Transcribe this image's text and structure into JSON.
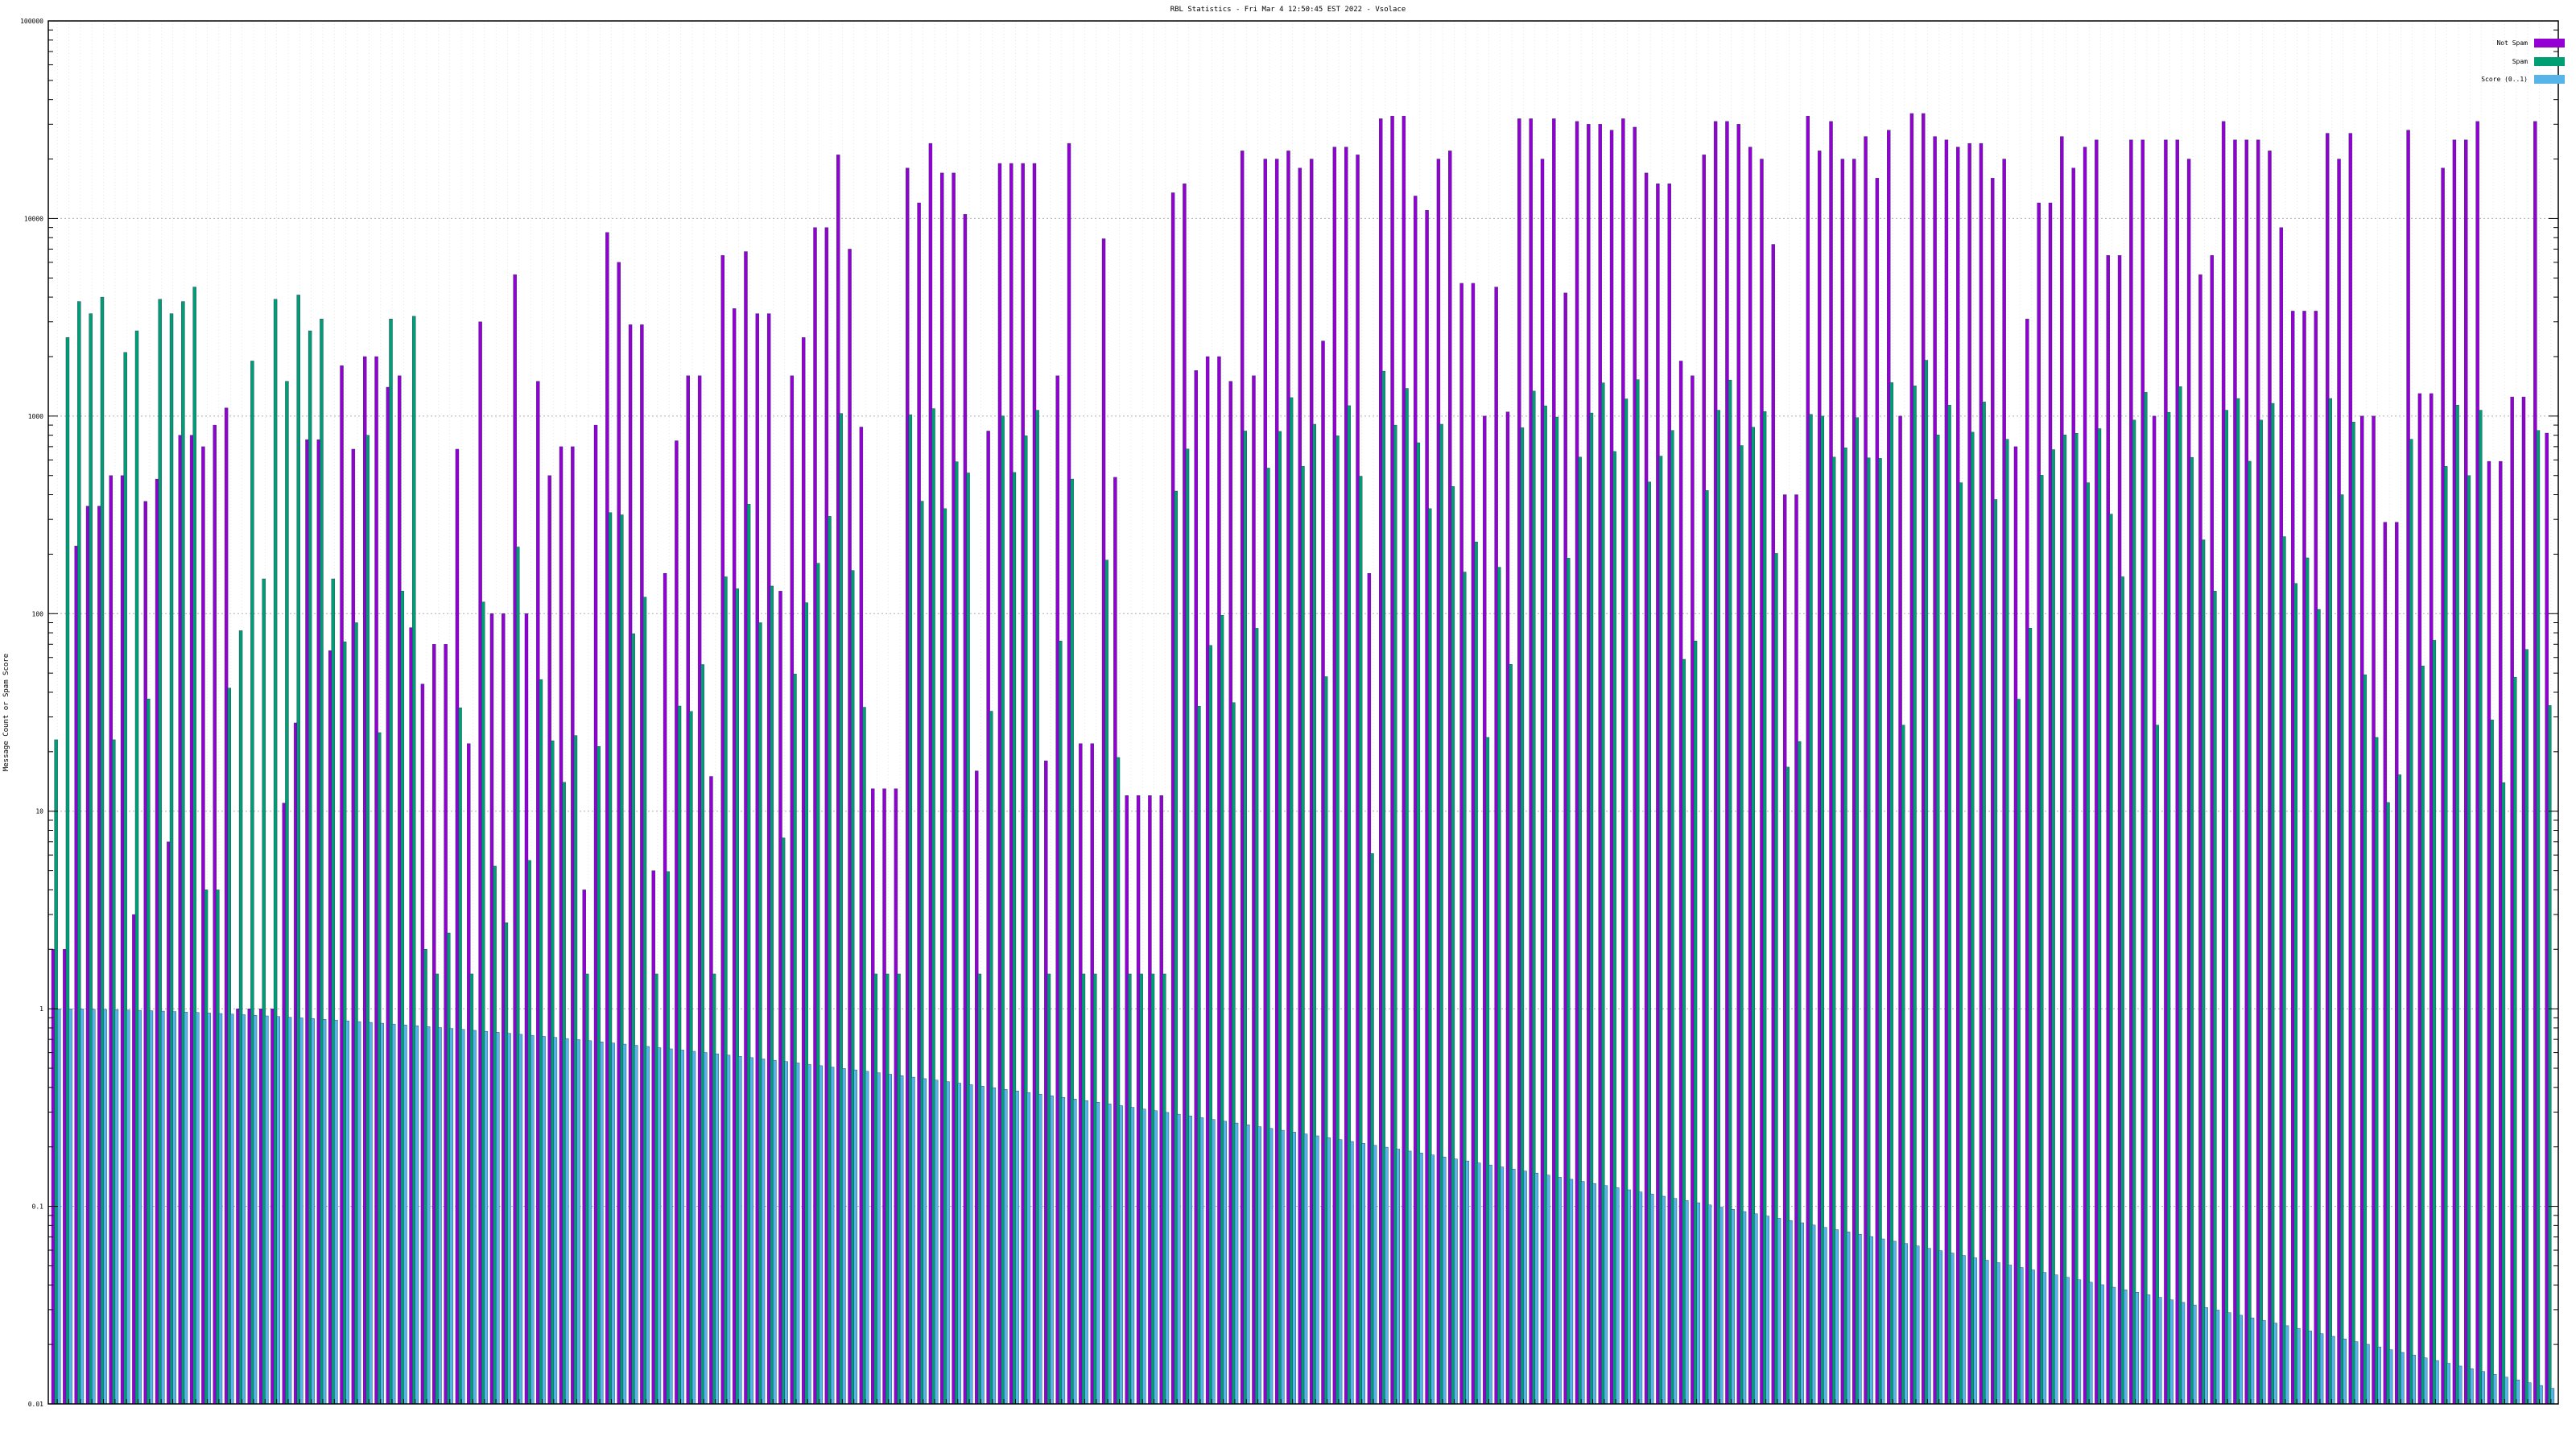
{
  "chart_data": {
    "type": "bar",
    "title": "RBL Statistics - Fri Mar  4 12:50:45 EST 2022 - Vsolace",
    "ylabel": "Message Count or Spam Score",
    "xlabel": "",
    "yscale": "log",
    "ylim": [
      0.01,
      100000
    ],
    "yticks": [
      "0.01",
      "0.1",
      "1",
      "10",
      "100",
      "1000",
      "10000",
      "100000"
    ],
    "grid": true,
    "legend_position": "top-right",
    "series": [
      {
        "name": "Not Spam",
        "color": "#9400d3"
      },
      {
        "name": "Spam",
        "color": "#009e73"
      },
      {
        "name": "Score (0..1)",
        "color": "#56b4e9"
      }
    ],
    "group_count": 217,
    "not_spam_samples": [
      2,
      220,
      350,
      350,
      500,
      3,
      370,
      480,
      7,
      800,
      700,
      900,
      1100,
      1,
      1,
      1,
      11,
      28,
      760,
      65,
      1800,
      680,
      2000,
      1400,
      1600,
      85,
      44,
      70,
      680,
      22,
      3000,
      100,
      5200,
      100,
      1500,
      500,
      700,
      4,
      900,
      8500,
      6000,
      2900,
      5,
      160,
      750,
      1600,
      15,
      6500,
      3500,
      6800,
      3300,
      130,
      1600,
      2500,
      9000,
      21000,
      7000,
      880,
      13,
      13,
      18000,
      12000,
      24000,
      17000,
      10500,
      16,
      840,
      19000,
      19000,
      19000,
      18,
      1600,
      24000,
      22,
      7900,
      490,
      12,
      12,
      12,
      13500,
      15000,
      1700,
      2000,
      1500,
      22000,
      1600,
      20000,
      22000,
      18000,
      20000,
      2400,
      23000,
      21000,
      160,
      32000,
      33000,
      13000,
      11000,
      20000,
      22000,
      4700,
      1000,
      4500,
      1050,
      32000,
      20000,
      32000,
      4200,
      31000,
      30000,
      28000,
      32000,
      29000,
      17000,
      15000,
      1900,
      1600,
      21000,
      31000,
      30000,
      23000,
      20000,
      7400,
      400,
      33000,
      22000,
      31000,
      20000,
      26000,
      16000,
      28000,
      1000,
      34000,
      26000,
      25000,
      23000,
      24000,
      16000,
      20000,
      700,
      3100,
      12000,
      26000,
      18000,
      23000,
      25000,
      6500,
      25000,
      25000,
      1000,
      25000,
      20000,
      5200,
      6500,
      31000,
      25000,
      25000,
      22000,
      9000,
      3400,
      3400,
      27000,
      20000,
      27000,
      1000,
      290,
      290,
      28000,
      1300,
      18000,
      25000,
      25000,
      31000,
      590,
      1250,
      1250,
      31000,
      820
    ]
  }
}
